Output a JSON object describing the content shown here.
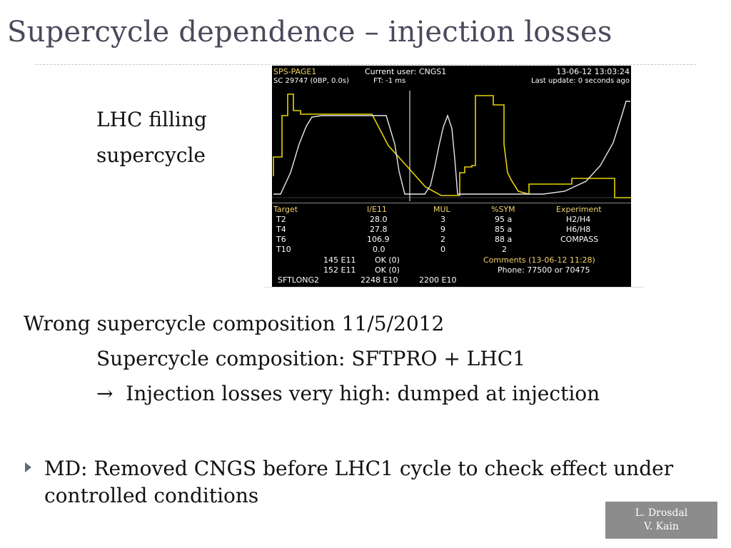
{
  "title": "Supercycle dependence – injection losses",
  "lhc_label": {
    "line1": "LHC filling",
    "line2": "supercycle"
  },
  "screen": {
    "header": {
      "page": "SPS-PAGE1",
      "current_user": "Current user: CNGS1",
      "datetime": "13-06-12  13:03:24",
      "sc": "SC 29747 (0BP, 0.0s)",
      "ft": "FT:    -1 ms",
      "last_update": "Last update: 0 seconds ago"
    },
    "table": {
      "columns": [
        "Target",
        "I/E11",
        "MUL",
        "%SYM",
        "Experiment"
      ],
      "rows": [
        [
          "T2",
          "28.0",
          "3",
          "95 a",
          "H2/H4"
        ],
        [
          "T4",
          "27.8",
          "9",
          "85 a",
          "H6/H8"
        ],
        [
          "T6",
          "106.9",
          "2",
          "88 a",
          "COMPASS"
        ],
        [
          "T10",
          "0.0",
          "0",
          "2",
          ""
        ]
      ]
    },
    "footer": {
      "row1_val": "145 E11",
      "row1_status": "OK (0)",
      "comments": "Comments (13-06-12 11:28)",
      "row2_val": "152 E11",
      "row2_status": "OK (0)",
      "phone": "Phone: 77500 or 70475",
      "row3_label": "SFTLONG2",
      "row3_val1": "2248 E10",
      "row3_val2": "2200 E10"
    },
    "colors": {
      "yellow": "#e6d200",
      "white": "#e8e8e8"
    }
  },
  "content": {
    "line1": "Wrong supercycle composition 11/5/2012",
    "line2": "Supercycle composition: SFTPRO + LHC1",
    "line3_arrow": "→",
    "line3": "Injection losses very high: dumped at injection",
    "bullet": "MD: Removed CNGS before LHC1 cycle to check effect under controlled conditions",
    "bullet_icon": "triangle-right-icon"
  },
  "authors": {
    "line1": "L. Drosdal",
    "line2": "V. Kain"
  }
}
